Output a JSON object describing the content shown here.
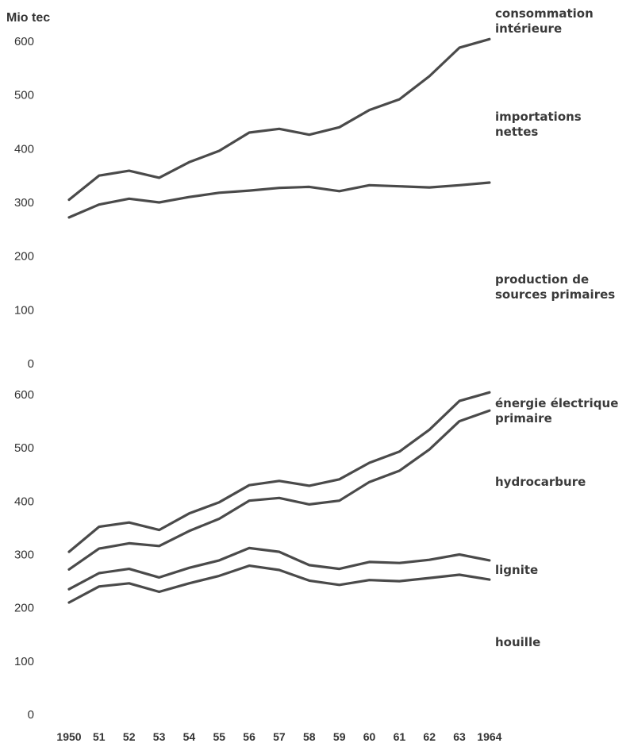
{
  "chart_data": [
    {
      "type": "line",
      "title": "",
      "ylabel": "Mio tec",
      "xlabel": "",
      "ylim": [
        0,
        600
      ],
      "yticks": [
        0,
        100,
        200,
        300,
        400,
        500,
        600
      ],
      "x": [
        "1950",
        "51",
        "52",
        "53",
        "54",
        "55",
        "56",
        "57",
        "58",
        "59",
        "60",
        "61",
        "62",
        "63",
        "1964"
      ],
      "series": [
        {
          "name": "consommation intérieure",
          "values": [
            305,
            350,
            359,
            346,
            375,
            396,
            430,
            437,
            426,
            440,
            472,
            492,
            535,
            588,
            604
          ]
        },
        {
          "name": "production de sources primaires",
          "values": [
            272,
            296,
            307,
            300,
            310,
            318,
            322,
            327,
            329,
            321,
            332,
            330,
            328,
            332,
            337
          ]
        }
      ],
      "area_labels": [
        {
          "lines": [
            "consommation",
            "intérieure"
          ]
        },
        {
          "lines": [
            "importations",
            "nettes"
          ]
        },
        {
          "lines": [
            "production de",
            "sources primaires"
          ]
        }
      ]
    },
    {
      "type": "line",
      "title": "",
      "ylim": [
        0,
        600
      ],
      "yticks": [
        0,
        100,
        200,
        300,
        400,
        500,
        600
      ],
      "x": [
        "1950",
        "51",
        "52",
        "53",
        "54",
        "55",
        "56",
        "57",
        "58",
        "59",
        "60",
        "61",
        "62",
        "63",
        "1964"
      ],
      "series": [
        {
          "name": "énergie électrique primaire",
          "values": [
            305,
            352,
            360,
            346,
            377,
            398,
            430,
            438,
            429,
            441,
            472,
            493,
            534,
            588,
            604
          ]
        },
        {
          "name": "hydrocarbure",
          "values": [
            272,
            311,
            321,
            316,
            344,
            367,
            401,
            406,
            394,
            401,
            436,
            457,
            497,
            550,
            570
          ]
        },
        {
          "name": "lignite",
          "values": [
            235,
            265,
            273,
            257,
            275,
            289,
            312,
            305,
            280,
            273,
            286,
            284,
            290,
            300,
            289
          ]
        },
        {
          "name": "houille",
          "values": [
            210,
            240,
            246,
            230,
            246,
            260,
            279,
            271,
            251,
            243,
            252,
            250,
            256,
            262,
            253
          ]
        }
      ],
      "area_labels": [
        {
          "lines": [
            "énergie électrique",
            "primaire"
          ]
        },
        {
          "lines": [
            "hydrocarbure"
          ]
        },
        {
          "lines": [
            "lignite"
          ]
        },
        {
          "lines": [
            "houille"
          ]
        }
      ]
    }
  ]
}
